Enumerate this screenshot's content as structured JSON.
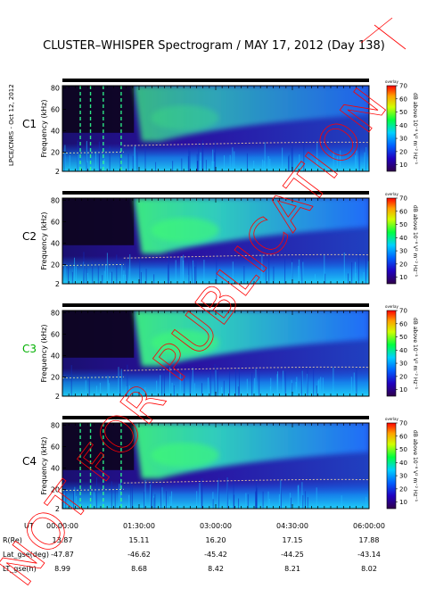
{
  "title": "CLUSTER–WHISPER Spectrogram / MAY 17, 2012 (Day 138)",
  "side_label": "LPCE/CNRS - Oct 12, 2012",
  "watermark": "NOT FOR PUBLICATION",
  "colorbar": {
    "label": "dB above 10⁻⁸ V² m⁻² Hz⁻¹",
    "tag": "overlay",
    "ticks": [
      "70",
      "60",
      "50",
      "40",
      "30",
      "20",
      "10"
    ],
    "range": [
      5,
      70
    ]
  },
  "chart_data": {
    "type": "heatmap",
    "panels": [
      {
        "name": "C1",
        "color": "#000000"
      },
      {
        "name": "C2",
        "color": "#000000"
      },
      {
        "name": "C3",
        "color": "#00b000"
      },
      {
        "name": "C4",
        "color": "#000000"
      }
    ],
    "ylabel": "Frequency (kHz)",
    "yticks": [
      "80",
      "60",
      "40",
      "20",
      "2"
    ],
    "ylim": [
      2,
      82
    ],
    "xlim_hours": [
      0,
      6
    ],
    "xticks": [
      {
        "ut": "00:00:00",
        "r": "13.87",
        "lat": "-47.87",
        "lt": "8.99"
      },
      {
        "ut": "01:30:00",
        "r": "15.11",
        "lat": "-46.62",
        "lt": "8.68"
      },
      {
        "ut": "03:00:00",
        "r": "16.20",
        "lat": "-45.42",
        "lt": "8.42"
      },
      {
        "ut": "04:30:00",
        "r": "17.15",
        "lat": "-44.25",
        "lt": "8.21"
      },
      {
        "ut": "06:00:00",
        "r": "17.88",
        "lat": "-43.14",
        "lt": "8.02"
      }
    ],
    "row_labels": {
      "ut": "UT",
      "r": "R(Re)",
      "lat": "Lat_gse(deg)",
      "lt": "LT_gse(h)"
    }
  },
  "colors": {
    "accent_red": "#ff0000",
    "frame": "#000000"
  }
}
